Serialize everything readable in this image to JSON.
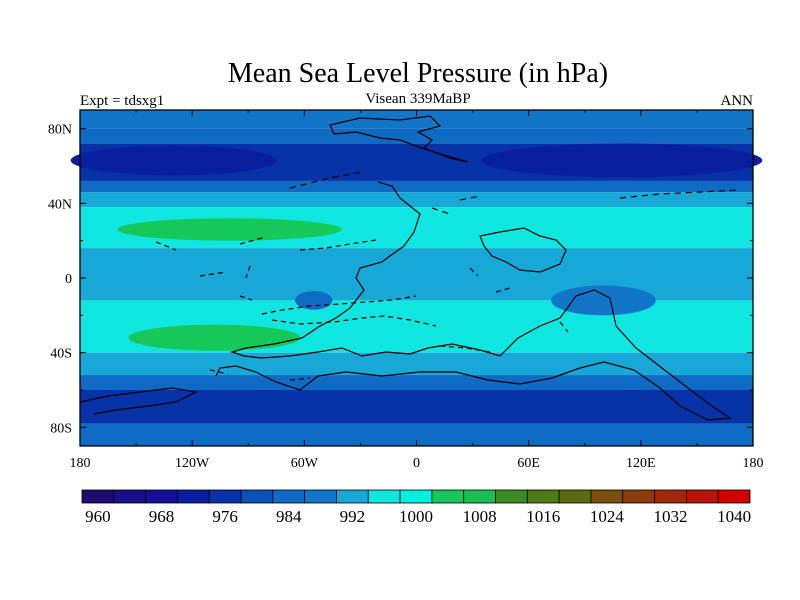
{
  "chart_data": {
    "type": "heatmap",
    "title": "Mean Sea Level Pressure (in hPa)",
    "left_label": "Expt = tdsxg1",
    "center_label": "Visean 339MaBP",
    "right_label": "ANN",
    "x_ticks": [
      {
        "value": -180,
        "label": "180"
      },
      {
        "value": -120,
        "label": "120W"
      },
      {
        "value": -60,
        "label": "60W"
      },
      {
        "value": 0,
        "label": "0"
      },
      {
        "value": 60,
        "label": "60E"
      },
      {
        "value": 120,
        "label": "120E"
      },
      {
        "value": 180,
        "label": "180"
      }
    ],
    "y_ticks": [
      {
        "value": 80,
        "label": "80N"
      },
      {
        "value": 40,
        "label": "40N"
      },
      {
        "value": 0,
        "label": "0"
      },
      {
        "value": -40,
        "label": "40S"
      },
      {
        "value": -80,
        "label": "80S"
      }
    ],
    "xlim": [
      -180,
      180
    ],
    "ylim": [
      -90,
      90
    ],
    "colorbar": {
      "levels": [
        960,
        964,
        968,
        972,
        976,
        980,
        984,
        988,
        992,
        996,
        1000,
        1004,
        1008,
        1012,
        1016,
        1020,
        1024,
        1028,
        1032,
        1036,
        1040
      ],
      "labels": [
        "960",
        "968",
        "976",
        "984",
        "992",
        "1000",
        "1008",
        "1016",
        "1024",
        "1032",
        "1040"
      ],
      "colors": [
        "#1e0c6e",
        "#190f87",
        "#14109a",
        "#0a1fa0",
        "#0832a8",
        "#0a52b8",
        "#0f6ac4",
        "#1276c8",
        "#18a8d8",
        "#10e6e0",
        "#00f0e0",
        "#16c85a",
        "#18c050",
        "#3a8c20",
        "#4e7a14",
        "#5e6a12",
        "#7a4e0e",
        "#8c3c0a",
        "#a02808",
        "#b81408",
        "#d20000"
      ]
    },
    "bands": [
      {
        "lat_top": 90,
        "lat_bottom": 80,
        "level": 988
      },
      {
        "lat_top": 80,
        "lat_bottom": 72,
        "level": 984
      },
      {
        "lat_top": 72,
        "lat_bottom": 52,
        "level": 976
      },
      {
        "lat_top": 52,
        "lat_bottom": 46,
        "level": 984
      },
      {
        "lat_top": 46,
        "lat_bottom": 38,
        "level": 992
      },
      {
        "lat_top": 38,
        "lat_bottom": 16,
        "level": 996
      },
      {
        "lat_top": 16,
        "lat_bottom": -12,
        "level": 992
      },
      {
        "lat_top": -12,
        "lat_bottom": -40,
        "level": 996
      },
      {
        "lat_top": -40,
        "lat_bottom": -52,
        "level": 992
      },
      {
        "lat_top": -52,
        "lat_bottom": -60,
        "level": 984
      },
      {
        "lat_top": -60,
        "lat_bottom": -78,
        "level": 976
      },
      {
        "lat_top": -78,
        "lat_bottom": -90,
        "level": 984
      }
    ],
    "features": [
      {
        "kind": "high",
        "lon": -100,
        "lat": 26,
        "rx": 60,
        "ry": 6,
        "level": 1004
      },
      {
        "kind": "high",
        "lon": -108,
        "lat": -32,
        "rx": 46,
        "ry": 7,
        "level": 1004
      },
      {
        "kind": "low",
        "lon": -130,
        "lat": 63,
        "rx": 55,
        "ry": 8,
        "level": 972
      },
      {
        "kind": "low",
        "lon": 110,
        "lat": 63,
        "rx": 75,
        "ry": 9,
        "level": 972
      },
      {
        "kind": "low",
        "lon": -55,
        "lat": -12,
        "rx": 10,
        "ry": 5,
        "level": 984
      },
      {
        "kind": "low",
        "lon": 100,
        "lat": -12,
        "rx": 28,
        "ry": 8,
        "level": 988
      }
    ]
  }
}
